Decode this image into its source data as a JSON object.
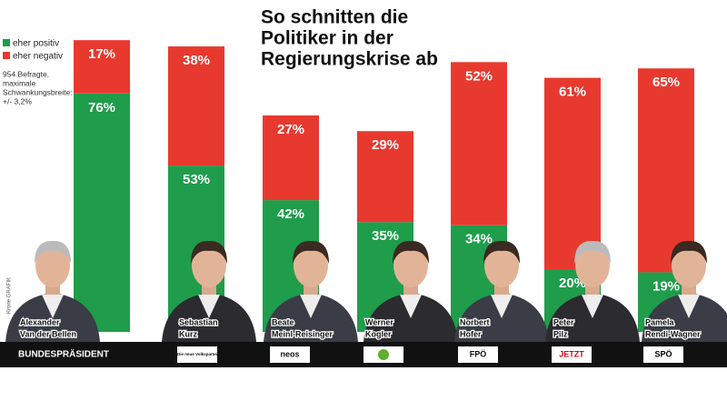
{
  "chart_data": {
    "type": "stacked-bar",
    "title": [
      "So schnitten die",
      "Politiker in der",
      "Regierungskrise ab"
    ],
    "note": [
      "954 Befragte,",
      "maximale",
      "Schwankungsbreite:",
      "+/- 3,2%"
    ],
    "credit": "Krone GRAFIK",
    "categories": [
      [
        "Alexander",
        "Van der Bellen"
      ],
      [
        "Sebastian",
        "Kurz"
      ],
      [
        "Beate",
        "Meinl-Reisinger"
      ],
      [
        "Werner",
        "Kogler"
      ],
      [
        "Norbert",
        "Hofer"
      ],
      [
        "Peter",
        "Pilz"
      ],
      [
        "Pamela",
        "Rendi-Wagner"
      ]
    ],
    "party_labels": [
      "BUNDESPRÄSIDENT",
      "Die neue Volkspartei",
      "neos",
      null,
      "FPÖ",
      "JETZT",
      "SPÖ"
    ],
    "series": [
      {
        "name": "eher positiv",
        "color": "#1f9d4b",
        "values": [
          76,
          53,
          42,
          35,
          34,
          20,
          19
        ],
        "value_labels": [
          "76%",
          "53%",
          "42%",
          "35%",
          "34%",
          "20%",
          "19%"
        ]
      },
      {
        "name": "eher negativ",
        "color": "#e8392f",
        "values": [
          17,
          38,
          27,
          29,
          52,
          61,
          65
        ],
        "value_labels": [
          "17%",
          "38%",
          "27%",
          "29%",
          "52%",
          "61%",
          "65%"
        ]
      }
    ]
  }
}
